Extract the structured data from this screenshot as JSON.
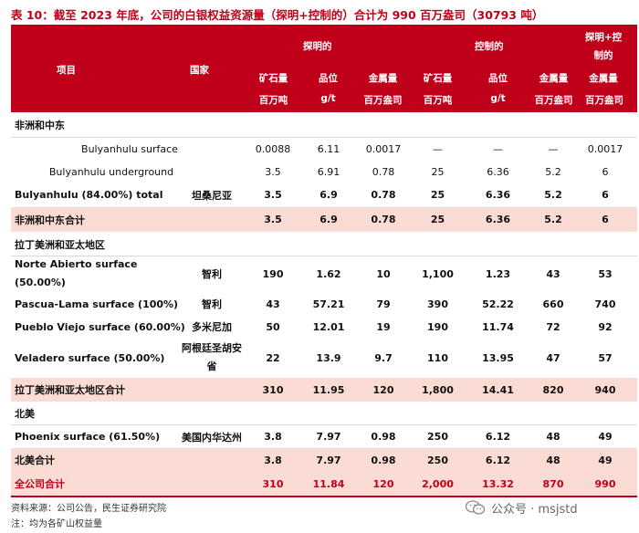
{
  "title": "表 10：截至 2023 年底，公司的白银权益资源量（探明+控制的）合计为 990 百万盎司（30793 吨）",
  "header": {
    "item": "项目",
    "country": "国家",
    "proven": "探明的",
    "controlled": "控制的",
    "total_l1": "探明+控",
    "total_l2": "制的",
    "ore": "矿石量",
    "grade": "品位",
    "metal": "金属量",
    "unit_mt": "百万吨",
    "unit_gt": "g/t",
    "unit_moz": "百万盎司"
  },
  "sections": [
    {
      "name": "非洲和中东",
      "rows": [
        {
          "item": "Bulyanhulu surface",
          "country": "",
          "ore1": "0.0088",
          "grade1": "6.11",
          "metal1": "0.0017",
          "ore2": "—",
          "grade2": "—",
          "metal2": "—",
          "total": "0.0017"
        },
        {
          "item": "Bulyanhulu underground",
          "country": "",
          "ore1": "3.5",
          "grade1": "6.91",
          "metal1": "0.78",
          "ore2": "25",
          "grade2": "6.36",
          "metal2": "5.2",
          "total": "6"
        },
        {
          "item": "Bulyanhulu (84.00%) total",
          "country": "坦桑尼亚",
          "ore1": "3.5",
          "grade1": "6.9",
          "metal1": "0.78",
          "ore2": "25",
          "grade2": "6.36",
          "metal2": "5.2",
          "total": "6"
        }
      ],
      "subtotal": {
        "item": "非洲和中东合计",
        "ore1": "3.5",
        "grade1": "6.9",
        "metal1": "0.78",
        "ore2": "25",
        "grade2": "6.36",
        "metal2": "5.2",
        "total": "6"
      }
    },
    {
      "name": "拉丁美洲和亚太地区",
      "rows": [
        {
          "item_l1": "Norte Abierto surface",
          "item_l2": "(50.00%)",
          "country": "智利",
          "ore1": "190",
          "grade1": "1.62",
          "metal1": "10",
          "ore2": "1,100",
          "grade2": "1.23",
          "metal2": "43",
          "total": "53"
        },
        {
          "item": "Pascua-Lama surface (100%)",
          "country": "智利",
          "ore1": "43",
          "grade1": "57.21",
          "metal1": "79",
          "ore2": "390",
          "grade2": "52.22",
          "metal2": "660",
          "total": "740"
        },
        {
          "item": "Pueblo Viejo surface (60.00%)",
          "country": "多米尼加",
          "ore1": "50",
          "grade1": "12.01",
          "metal1": "19",
          "ore2": "190",
          "grade2": "11.74",
          "metal2": "72",
          "total": "92"
        },
        {
          "item": "Veladero surface (50.00%)",
          "country_l1": "阿根廷圣胡安",
          "country_l2": "省",
          "ore1": "22",
          "grade1": "13.9",
          "metal1": "9.7",
          "ore2": "110",
          "grade2": "13.95",
          "metal2": "47",
          "total": "57"
        }
      ],
      "subtotal": {
        "item": "拉丁美洲和亚太地区合计",
        "ore1": "310",
        "grade1": "11.95",
        "metal1": "120",
        "ore2": "1,800",
        "grade2": "14.41",
        "metal2": "820",
        "total": "940"
      }
    },
    {
      "name": "北美",
      "rows": [
        {
          "item": "Phoenix surface (61.50%)",
          "country": "美国内华达州",
          "ore1": "3.8",
          "grade1": "7.97",
          "metal1": "0.98",
          "ore2": "250",
          "grade2": "6.12",
          "metal2": "48",
          "total": "49"
        }
      ],
      "subtotal": {
        "item": "北美合计",
        "ore1": "3.8",
        "grade1": "7.97",
        "metal1": "0.98",
        "ore2": "250",
        "grade2": "6.12",
        "metal2": "48",
        "total": "49"
      }
    }
  ],
  "grand_total": {
    "item": "全公司合计",
    "ore1": "310",
    "grade1": "11.84",
    "metal1": "120",
    "ore2": "2,000",
    "grade2": "13.32",
    "metal2": "870",
    "total": "990"
  },
  "footnotes": {
    "source": "资料来源：公司公告，民生证券研究院",
    "note": "注：均为各矿山权益量"
  },
  "watermark": {
    "icon": "wechat-icon",
    "text": "公众号 · msjstd"
  },
  "colors": {
    "accent": "#c0001a",
    "subtotal_bg": "#fbdcd4"
  }
}
